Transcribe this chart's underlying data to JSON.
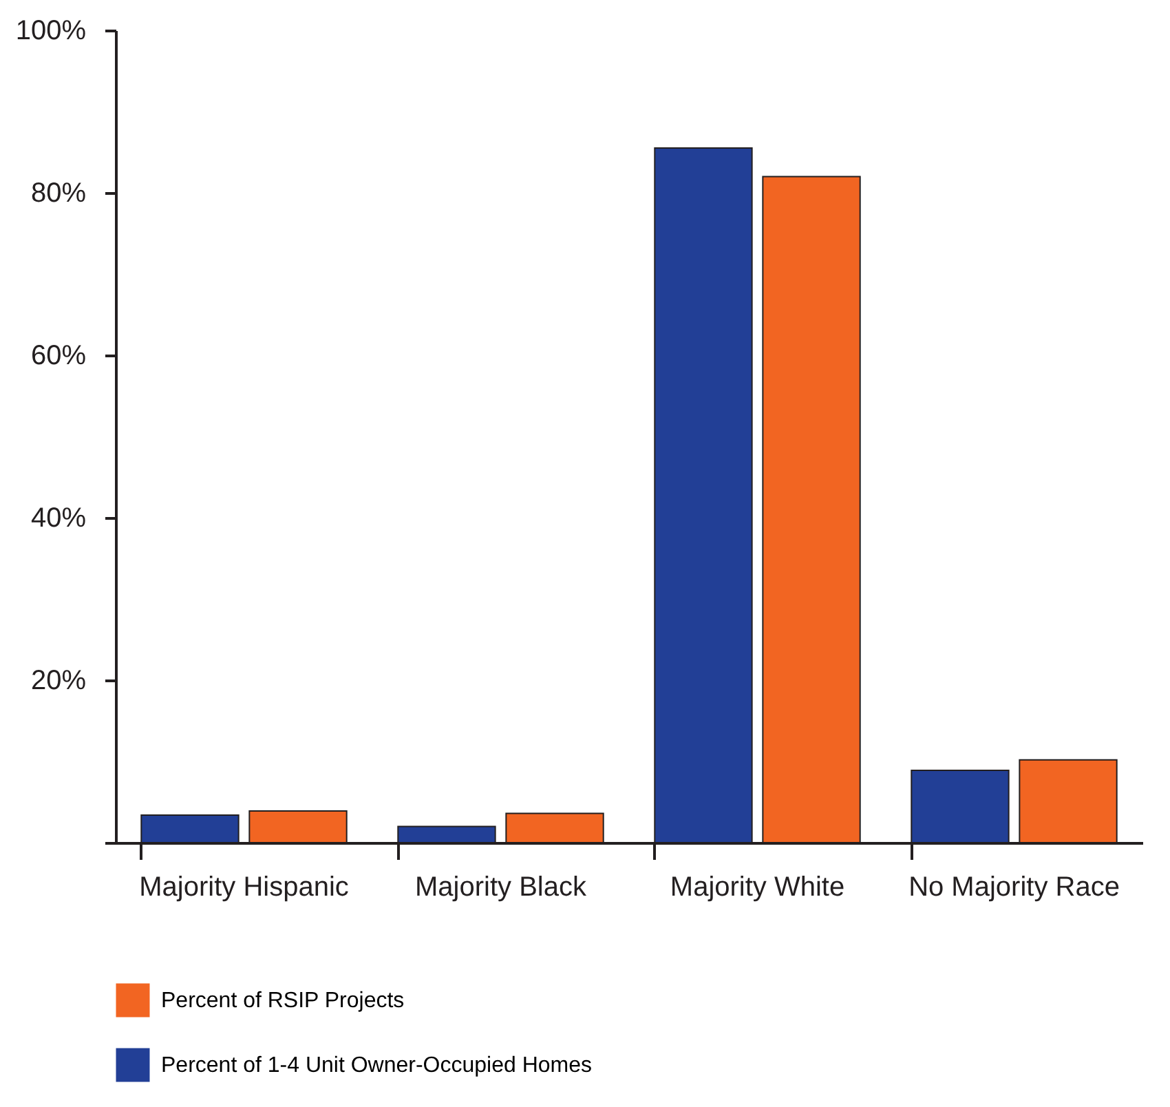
{
  "chart_data": {
    "type": "bar",
    "categories": [
      "Majority Hispanic",
      "Majority Black",
      "Majority White",
      "No Majority Race"
    ],
    "series": [
      {
        "name": "Percent of 1-4 Unit Owner-Occupied Homes",
        "color": "#223f96",
        "values": [
          3.4,
          2.0,
          85.5,
          8.9
        ]
      },
      {
        "name": "Percent of RSIP Projects",
        "color": "#f26522",
        "values": [
          3.9,
          3.6,
          82.0,
          10.2
        ]
      }
    ],
    "ylim": [
      0,
      100
    ],
    "yticks": [
      {
        "value": 0,
        "label": null
      },
      {
        "value": 20,
        "label": "20%"
      },
      {
        "value": 40,
        "label": "40%"
      },
      {
        "value": 60,
        "label": "60%"
      },
      {
        "value": 80,
        "label": "80%"
      },
      {
        "value": 100,
        "label": "100%"
      }
    ],
    "grid": false,
    "legend": "bottom"
  }
}
